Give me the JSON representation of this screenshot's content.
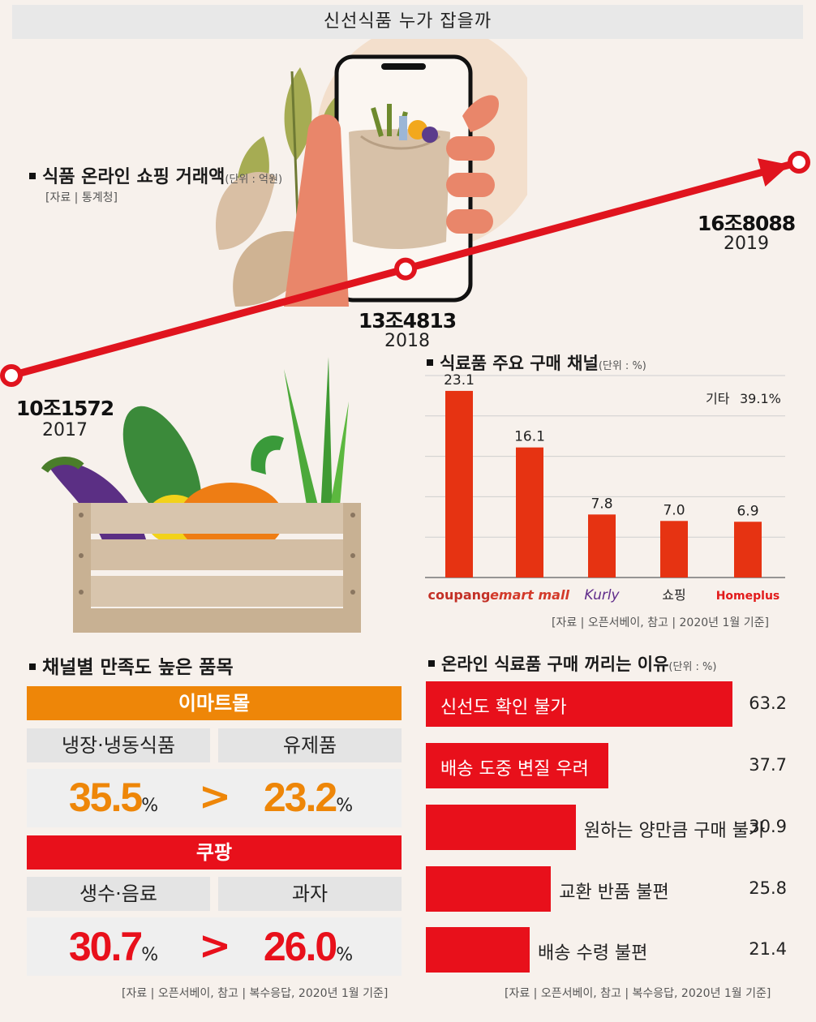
{
  "header": {
    "title": "신선식품 누가 잡을까"
  },
  "trend": {
    "title": "식품 온라인 쇼핑 거래액",
    "unit": "(단위 : 억원)",
    "source": "[자료 | 통계청]",
    "points": [
      {
        "value_label": "10조1572",
        "year": "2017"
      },
      {
        "value_label": "13조4813",
        "year": "2018"
      },
      {
        "value_label": "16조8088",
        "year": "2019"
      }
    ]
  },
  "satisfaction": {
    "title": "채널별 만족도 높은 품목",
    "source": "[자료 | 오픈서베이, 참고 | 복수응답, 2020년 1월 기준]",
    "groups": [
      {
        "channel": "이마트몰",
        "left_item": "냉장·냉동식품",
        "right_item": "유제품",
        "left_value": "35.5",
        "right_value": "23.2",
        "unit": "%",
        "symbol": ">",
        "color": "#ee8608"
      },
      {
        "channel": "쿠팡",
        "left_item": "생수·음료",
        "right_item": "과자",
        "left_value": "30.7",
        "right_value": "26.0",
        "unit": "%",
        "symbol": ">",
        "color": "#e8101b"
      }
    ]
  },
  "colors": {
    "trend_line": "#e0141e",
    "bar": "#e63312",
    "hbar": "#e8101b",
    "emart_orange": "#ee8608",
    "coupang_red": "#e8101b"
  },
  "chart_data": [
    {
      "type": "line",
      "title": "식품 온라인 쇼핑 거래액",
      "unit": "억원",
      "x": [
        "2017",
        "2018",
        "2019"
      ],
      "values": [
        101572,
        134813,
        168088
      ],
      "labels": [
        "10조1572",
        "13조4813",
        "16조8088"
      ]
    },
    {
      "type": "bar",
      "title": "식료품 주요 구매 채널",
      "unit": "(단위 : %)",
      "categories": [
        "coupang",
        "emart mall",
        "Kurly",
        "쇼핑",
        "Homeplus"
      ],
      "values": [
        23.1,
        16.1,
        7.8,
        7.0,
        6.9
      ],
      "value_labels": [
        "23.1",
        "16.1",
        "7.8",
        "7.0",
        "6.9"
      ],
      "ylim": [
        0,
        25
      ],
      "gridlines": [
        0,
        5,
        10,
        15,
        20,
        25
      ],
      "annotation": {
        "label": "기타",
        "value": "39.1%"
      },
      "source": "[자료 | 오픈서베이, 참고 | 2020년 1월 기준]"
    },
    {
      "type": "bar",
      "orientation": "horizontal",
      "title": "온라인 식료품 구매 꺼리는 이유",
      "unit": "(단위 : %)",
      "categories": [
        "신선도 확인 불가",
        "배송 도중 변질 우려",
        "원하는 양만큼 구매 불가",
        "교환 반품 불편",
        "배송 수령 불편"
      ],
      "values": [
        63.2,
        37.7,
        30.9,
        25.8,
        21.4
      ],
      "value_labels": [
        "63.2",
        "37.7",
        "30.9",
        "25.8",
        "21.4"
      ],
      "xlim": [
        0,
        63.2
      ],
      "source": "[자료 | 오픈서베이, 참고 | 복수응답, 2020년 1월 기준]"
    }
  ]
}
